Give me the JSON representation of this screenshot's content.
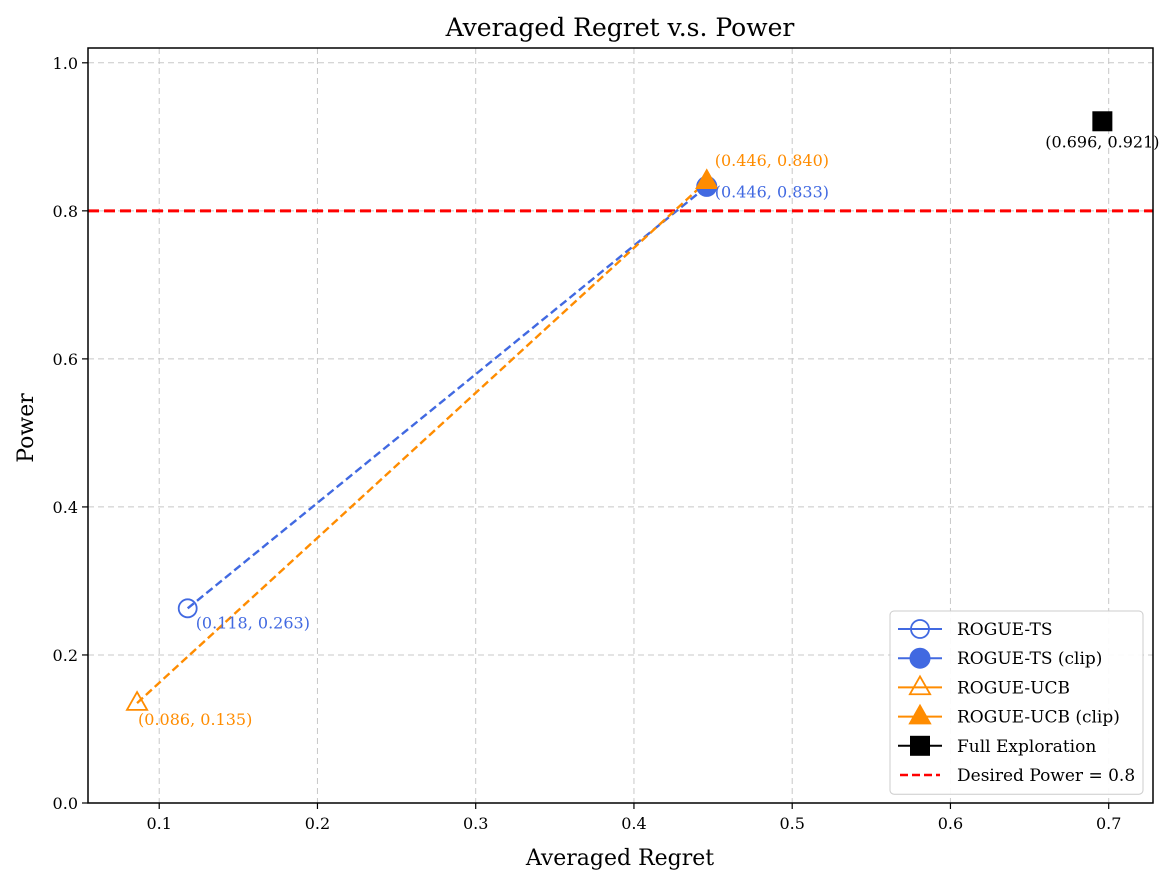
{
  "chart_data": {
    "type": "scatter",
    "title": "Averaged Regret v.s. Power",
    "xlabel": "Averaged Regret",
    "ylabel": "Power",
    "xlim": [
      0.055,
      0.728
    ],
    "ylim": [
      0.0,
      1.02
    ],
    "grid": true,
    "x_ticks": [
      0.1,
      0.2,
      0.3,
      0.4,
      0.5,
      0.6,
      0.7
    ],
    "x_tick_labels": [
      "0.1",
      "0.2",
      "0.3",
      "0.4",
      "0.5",
      "0.6",
      "0.7"
    ],
    "y_ticks": [
      0.0,
      0.2,
      0.4,
      0.6,
      0.8,
      1.0
    ],
    "y_tick_labels": [
      "0.0",
      "0.2",
      "0.4",
      "0.6",
      "0.8",
      "1.0"
    ],
    "series": [
      {
        "name": "ROGUE-TS",
        "marker": "circle-open",
        "color": "#4169e1",
        "x": [
          0.118
        ],
        "y": [
          0.263
        ],
        "labels": [
          "(0.118, 0.263)"
        ]
      },
      {
        "name": "ROGUE-TS (clip)",
        "marker": "circle-filled",
        "color": "#4169e1",
        "x": [
          0.446
        ],
        "y": [
          0.833
        ],
        "labels": [
          "(0.446, 0.833)"
        ]
      },
      {
        "name": "ROGUE-UCB",
        "marker": "triangle-open",
        "color": "#ff8c00",
        "x": [
          0.086
        ],
        "y": [
          0.135
        ],
        "labels": [
          "(0.086, 0.135)"
        ]
      },
      {
        "name": "ROGUE-UCB (clip)",
        "marker": "triangle-filled",
        "color": "#ff8c00",
        "x": [
          0.446
        ],
        "y": [
          0.84
        ],
        "labels": [
          "(0.446, 0.840)"
        ]
      },
      {
        "name": "Full Exploration",
        "marker": "square-filled",
        "color": "#000000",
        "x": [
          0.696
        ],
        "y": [
          0.921
        ],
        "labels": [
          "(0.696, 0.921)"
        ]
      }
    ],
    "connectors": [
      {
        "from": [
          0.118,
          0.263
        ],
        "to": [
          0.446,
          0.833
        ],
        "color": "#4169e1",
        "style": "dashed"
      },
      {
        "from": [
          0.086,
          0.135
        ],
        "to": [
          0.446,
          0.84
        ],
        "color": "#ff8c00",
        "style": "dashed"
      }
    ],
    "reference_line": {
      "name": "Desired Power = 0.8",
      "y": 0.8,
      "color": "#ff0000",
      "style": "dashed"
    },
    "legend": {
      "position": "lower-right",
      "entries": [
        {
          "label": "ROGUE-TS",
          "marker": "circle-open",
          "color": "#4169e1"
        },
        {
          "label": "ROGUE-TS (clip)",
          "marker": "circle-filled",
          "color": "#4169e1"
        },
        {
          "label": "ROGUE-UCB",
          "marker": "triangle-open",
          "color": "#ff8c00"
        },
        {
          "label": "ROGUE-UCB (clip)",
          "marker": "triangle-filled",
          "color": "#ff8c00"
        },
        {
          "label": "Full Exploration",
          "marker": "square-filled",
          "color": "#000000"
        },
        {
          "label": "Desired Power = 0.8",
          "marker": "dashed-line",
          "color": "#ff0000"
        }
      ]
    }
  }
}
